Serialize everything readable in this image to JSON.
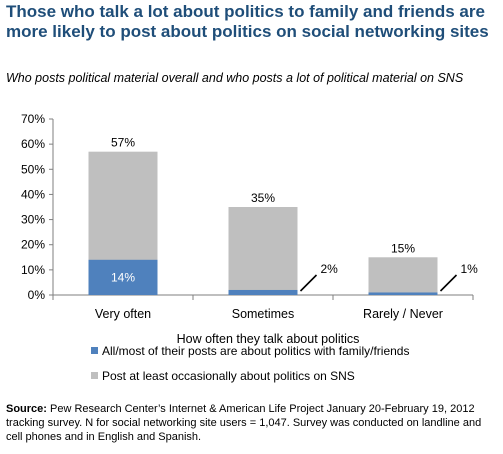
{
  "header": {
    "title": "Those who talk a lot about politics to family and friends are more likely to post about politics on social networking sites",
    "subtitle": "Who posts political material overall and who posts a lot of political material on SNS"
  },
  "source": {
    "label": "Source:",
    "text": " Pew Research Center’s Internet & American Life Project January 20-February 19, 2012 tracking survey. N for social networking site users = 1,047. Survey was conducted on landline and cell phones and in English and Spanish."
  },
  "colors": {
    "total": "#bfbfbf",
    "a_lot": "#4f81bd",
    "axis": "#7f7f7f",
    "title": "#1f4e79"
  },
  "chart_data": {
    "type": "bar",
    "stacked": false,
    "categories": [
      "Very often",
      "Sometimes",
      "Rarely / Never"
    ],
    "series": [
      {
        "name": "Post at least occasionally about politics on SNS",
        "values": [
          57,
          35,
          15
        ],
        "labels": [
          "57%",
          "35%",
          "15%"
        ]
      },
      {
        "name": "All/most of their posts are about politics with family/friends",
        "values": [
          14,
          2,
          1
        ],
        "labels": [
          "14%",
          "2%",
          "1%"
        ]
      }
    ],
    "xlabel": "How often they talk about politics",
    "ylabel": "",
    "ylim": [
      0,
      70
    ],
    "yticks": [
      "0%",
      "10%",
      "20%",
      "30%",
      "40%",
      "50%",
      "60%",
      "70%"
    ],
    "grid": false,
    "legend": "bottom"
  }
}
